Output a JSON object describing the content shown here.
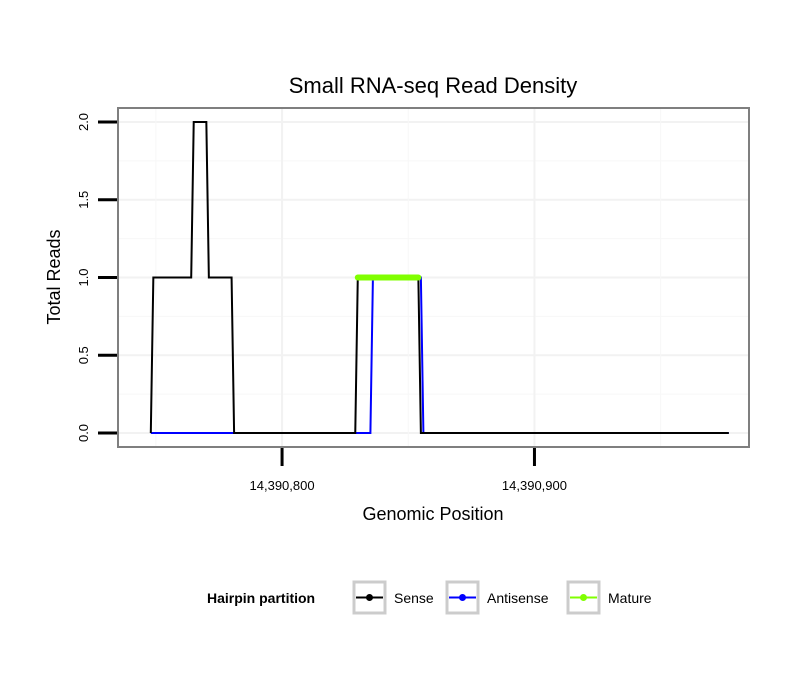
{
  "chart_data": {
    "type": "line",
    "title": "Small RNA-seq Read Density",
    "xlabel": "Genomic Position",
    "ylabel": "Total Reads",
    "xlim": [
      14390735,
      14390985
    ],
    "ylim": [
      -0.09,
      2.09
    ],
    "x_ticks": [
      14390800,
      14390900
    ],
    "x_tick_labels": [
      "14,390,800",
      "14,390,900"
    ],
    "y_ticks": [
      0,
      0.5,
      1,
      1.5,
      2
    ],
    "y_tick_labels": [
      "0.0",
      "0.5",
      "1.0",
      "1.5",
      "2.0"
    ],
    "grid": true,
    "legend": {
      "title": "Hairpin partition",
      "position": "bottom",
      "entries": [
        {
          "name": "Sense",
          "color": "#000000"
        },
        {
          "name": "Antisense",
          "color": "#0000ff"
        },
        {
          "name": "Mature",
          "color": "#80ff00"
        }
      ]
    },
    "series": [
      {
        "name": "Sense",
        "color": "#000000",
        "x": [
          14390748,
          14390749,
          14390764,
          14390765,
          14390770,
          14390771,
          14390780,
          14390781,
          14390829,
          14390830,
          14390854,
          14390855,
          14390977
        ],
        "y": [
          0,
          1,
          1,
          2,
          2,
          1,
          1,
          0,
          0,
          1,
          1,
          0,
          0
        ]
      },
      {
        "name": "Antisense",
        "color": "#0000ff",
        "x": [
          14390748,
          14390835,
          14390836,
          14390855,
          14390856,
          14390977
        ],
        "y": [
          0,
          0,
          1,
          1,
          0,
          0
        ]
      },
      {
        "name": "Mature",
        "color": "#80ff00",
        "x": [
          14390830,
          14390854
        ],
        "y": [
          1,
          1
        ]
      }
    ]
  }
}
